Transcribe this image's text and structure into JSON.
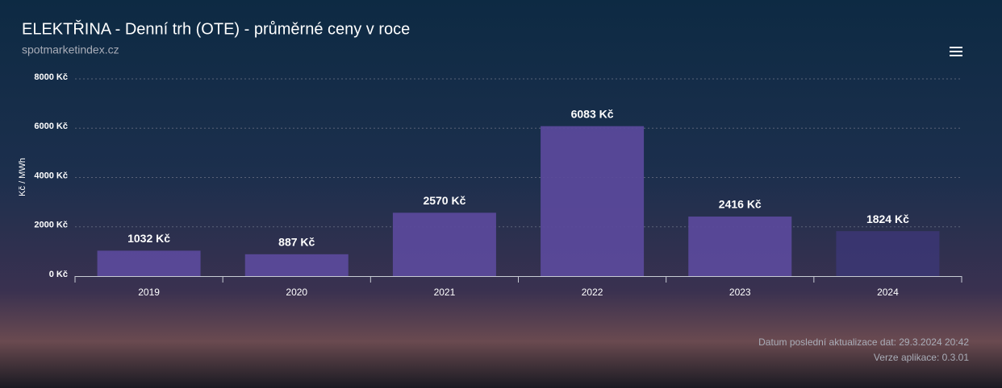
{
  "chart_data": {
    "type": "bar",
    "title": "ELEKTŘINA - Denní trh (OTE) - průměrné ceny v roce",
    "subtitle": "spotmarketindex.cz",
    "y_label": "Kč / MWh",
    "categories": [
      "2019",
      "2020",
      "2021",
      "2022",
      "2023",
      "2024"
    ],
    "values": [
      1032,
      887,
      2570,
      6083,
      2416,
      1824
    ],
    "value_labels": [
      "1032 Kč",
      "887 Kč",
      "2570 Kč",
      "6083 Kč",
      "2416 Kč",
      "1824 Kč"
    ],
    "colors": [
      "#5b4a9c",
      "#5b4a9c",
      "#5b4a9c",
      "#5b4a9c",
      "#5b4a9c",
      "#3b3672"
    ],
    "ylim": [
      0,
      8000
    ],
    "yticks": [
      {
        "value": 0,
        "label": "0 Kč"
      },
      {
        "value": 2000,
        "label": "2000 Kč"
      },
      {
        "value": 4000,
        "label": "4000 Kč"
      },
      {
        "value": 6000,
        "label": "6000 Kč"
      },
      {
        "value": 8000,
        "label": "8000 Kč"
      }
    ],
    "grid": true,
    "annotations": [
      "Datum poslední aktualizace dat: 29.3.2024 20:42",
      "Verze aplikace: 0.3.01"
    ]
  }
}
